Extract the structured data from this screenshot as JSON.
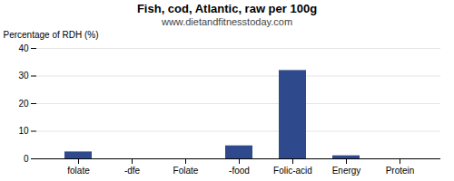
{
  "chart_data": {
    "type": "bar",
    "title": "Fish, cod, Atlantic, raw per 100g",
    "subtitle": "www.dietandfitnesstoday.com",
    "categories": [
      "folate",
      "-dfe",
      "Folate",
      "-food",
      "Folic-acid",
      "Energy",
      "Protein"
    ],
    "values": [
      2.5,
      0,
      0,
      4.7,
      32.0,
      1.1,
      0
    ],
    "color": "#2e4a8c",
    "ylabel": "Percentage of RDH (%)",
    "ylim": [
      0,
      40
    ],
    "yticks": [
      0,
      10,
      20,
      30,
      40
    ],
    "grid": true
  }
}
